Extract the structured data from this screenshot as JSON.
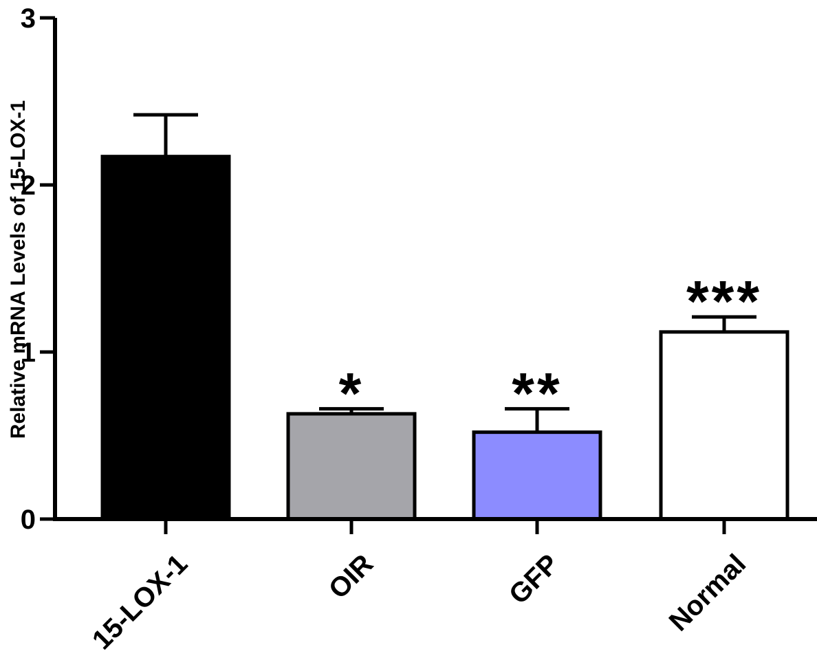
{
  "chart_data": {
    "type": "bar",
    "title": "",
    "xlabel": "",
    "ylabel": "Relative mRNA Levels of 15-LOX-1",
    "ylim": [
      0,
      3
    ],
    "yticks": [
      0,
      1,
      2,
      3
    ],
    "ytick_labels": [
      "0",
      "1",
      "2",
      "3"
    ],
    "grid": false,
    "categories": [
      "15-LOX-1",
      "OIR",
      "GFP",
      "Normal"
    ],
    "values": [
      2.17,
      0.63,
      0.52,
      1.12
    ],
    "errors": [
      0.25,
      0.03,
      0.14,
      0.09
    ],
    "annotations": [
      "",
      "*",
      "**",
      "***"
    ],
    "colors": [
      "#000000",
      "#a5a5aa",
      "#8c8cff",
      "#ffffff"
    ]
  }
}
